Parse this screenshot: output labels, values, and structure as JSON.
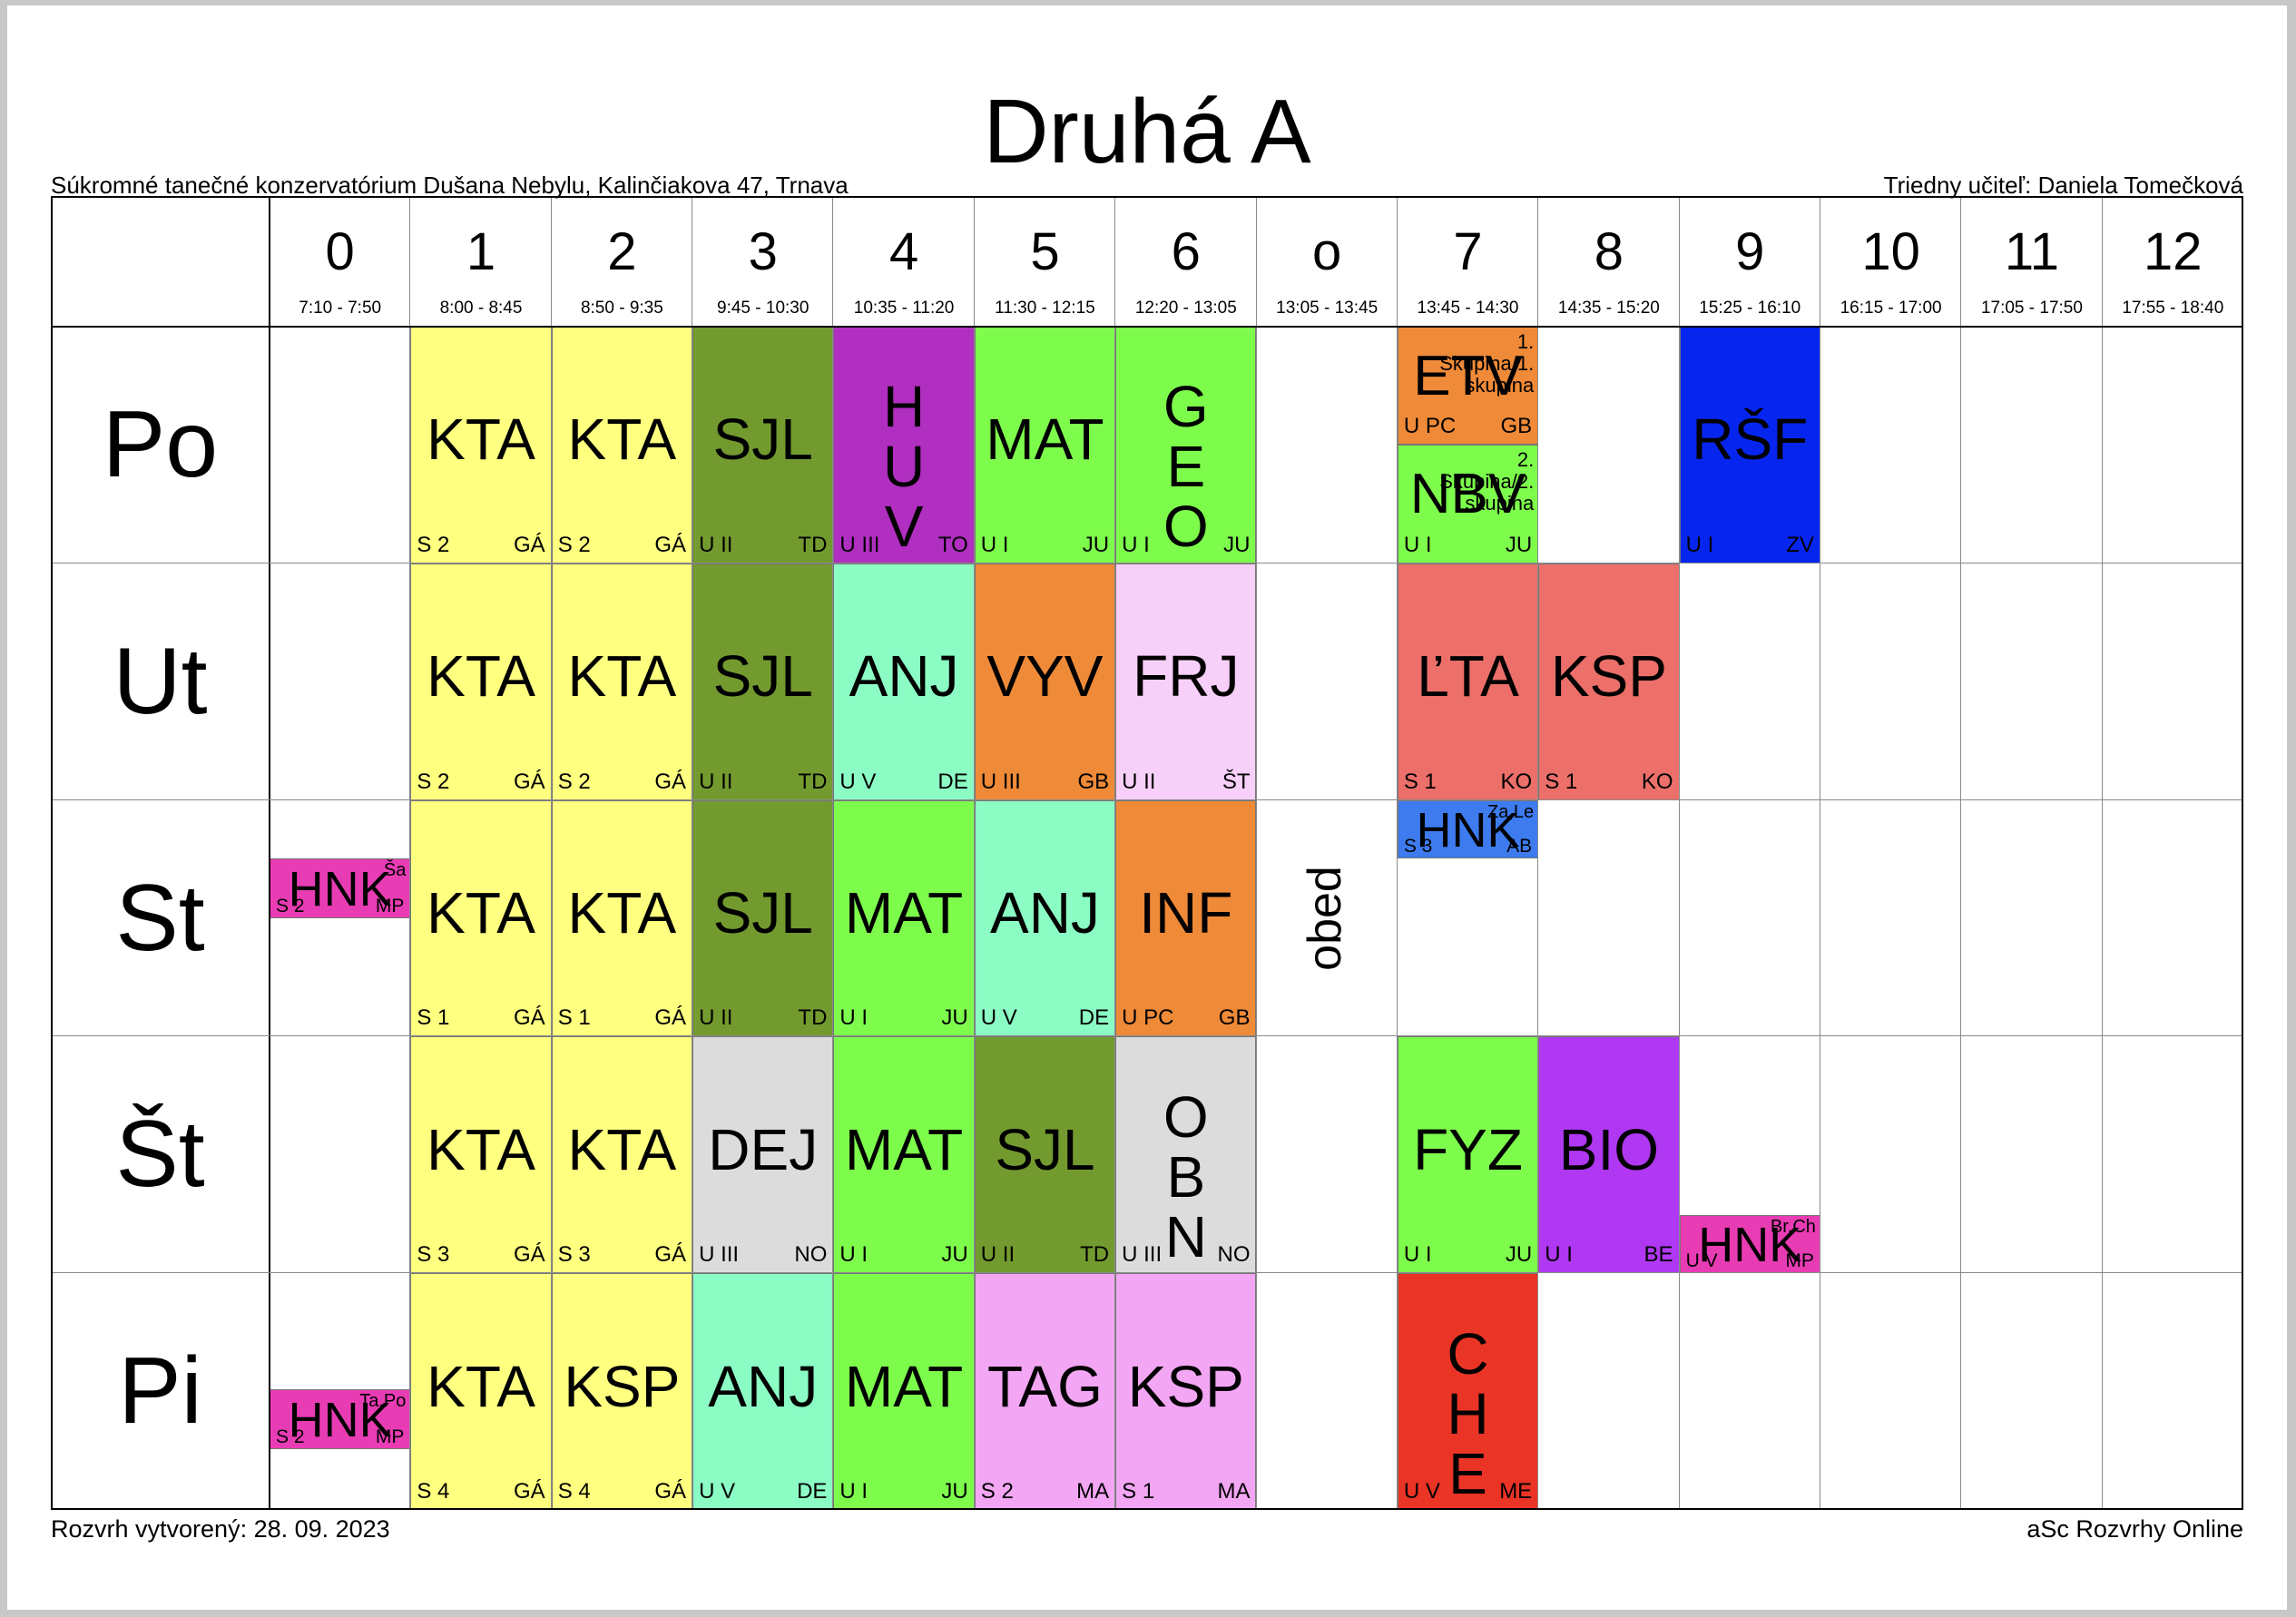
{
  "title": "Druhá A",
  "school": "Súkromné tanečné konzervatórium Dušana Nebylu, Kalinčiakova 47, Trnava",
  "class_teacher": "Triedny učiteľ: Daniela Tomečková",
  "created": "Rozvrh vytvorený: 28. 09. 2023",
  "brand": "aSc Rozvrhy Online",
  "break_label": "obed",
  "periods": [
    {
      "num": "0",
      "time": "7:10 - 7:50"
    },
    {
      "num": "1",
      "time": "8:00 - 8:45"
    },
    {
      "num": "2",
      "time": "8:50 - 9:35"
    },
    {
      "num": "3",
      "time": "9:45 - 10:30"
    },
    {
      "num": "4",
      "time": "10:35 - 11:20"
    },
    {
      "num": "5",
      "time": "11:30 - 12:15"
    },
    {
      "num": "6",
      "time": "12:20 - 13:05"
    },
    {
      "num": "o",
      "time": "13:05 - 13:45"
    },
    {
      "num": "7",
      "time": "13:45 - 14:30"
    },
    {
      "num": "8",
      "time": "14:35 - 15:20"
    },
    {
      "num": "9",
      "time": "15:25 - 16:10"
    },
    {
      "num": "10",
      "time": "16:15 - 17:00"
    },
    {
      "num": "11",
      "time": "17:05 - 17:50"
    },
    {
      "num": "12",
      "time": "17:55 - 18:40"
    }
  ],
  "days": [
    "Po",
    "Ut",
    "St",
    "Št",
    "Pi"
  ],
  "lessons": [
    {
      "day": 0,
      "col": 1,
      "subject": "KTA",
      "room": "S 2",
      "teacher": "GÁ",
      "color": "#ffff80"
    },
    {
      "day": 0,
      "col": 2,
      "subject": "KTA",
      "room": "S 2",
      "teacher": "GÁ",
      "color": "#ffff80"
    },
    {
      "day": 0,
      "col": 3,
      "subject": "SJL",
      "room": "U II",
      "teacher": "TD",
      "color": "#739a2f"
    },
    {
      "day": 0,
      "col": 4,
      "subject": "HUV",
      "room": "U III",
      "teacher": "TO",
      "color": "#b02ec0"
    },
    {
      "day": 0,
      "col": 5,
      "subject": "MAT",
      "room": "U I",
      "teacher": "JU",
      "color": "#7dfc4c"
    },
    {
      "day": 0,
      "col": 6,
      "subject": "GEO",
      "room": "U I",
      "teacher": "JU",
      "color": "#7dfc4c"
    },
    {
      "day": 0,
      "col": 8,
      "subject": "ETV",
      "room": "U PC",
      "teacher": "GB",
      "group": "Skupina/1. skupina",
      "group_num": "1.",
      "color": "#ef8a38",
      "part": "top"
    },
    {
      "day": 0,
      "col": 8,
      "subject": "NBV",
      "room": "U I",
      "teacher": "JU",
      "group": "Skupina/2. skupina",
      "group_num": "2.",
      "color": "#7dfc4c",
      "part": "bottom"
    },
    {
      "day": 0,
      "col": 10,
      "subject": "RŠF",
      "room": "U I",
      "teacher": "ZV",
      "color": "#0626f0"
    },
    {
      "day": 1,
      "col": 1,
      "subject": "KTA",
      "room": "S 2",
      "teacher": "GÁ",
      "color": "#ffff80"
    },
    {
      "day": 1,
      "col": 2,
      "subject": "KTA",
      "room": "S 2",
      "teacher": "GÁ",
      "color": "#ffff80"
    },
    {
      "day": 1,
      "col": 3,
      "subject": "SJL",
      "room": "U II",
      "teacher": "TD",
      "color": "#739a2f"
    },
    {
      "day": 1,
      "col": 4,
      "subject": "ANJ",
      "room": "U V",
      "teacher": "DE",
      "color": "#8cfcc5"
    },
    {
      "day": 1,
      "col": 5,
      "subject": "VYV",
      "room": "U III",
      "teacher": "GB",
      "color": "#ef8a38"
    },
    {
      "day": 1,
      "col": 6,
      "subject": "FRJ",
      "room": "U II",
      "teacher": "ŠT",
      "color": "#f7d0f9"
    },
    {
      "day": 1,
      "col": 8,
      "subject": "ĽTA",
      "room": "S 1",
      "teacher": "KO",
      "color": "#ec6f6a"
    },
    {
      "day": 1,
      "col": 9,
      "subject": "KSP",
      "room": "S 1",
      "teacher": "KO",
      "color": "#ec6f6a"
    },
    {
      "day": 2,
      "col": 0,
      "subject": "HNK",
      "room": "S 2",
      "teacher": "MP",
      "group": "Ša",
      "color": "#e83cb4",
      "part": "mini-mid"
    },
    {
      "day": 2,
      "col": 1,
      "subject": "KTA",
      "room": "S 1",
      "teacher": "GÁ",
      "color": "#ffff80"
    },
    {
      "day": 2,
      "col": 2,
      "subject": "KTA",
      "room": "S 1",
      "teacher": "GÁ",
      "color": "#ffff80"
    },
    {
      "day": 2,
      "col": 3,
      "subject": "SJL",
      "room": "U II",
      "teacher": "TD",
      "color": "#739a2f"
    },
    {
      "day": 2,
      "col": 4,
      "subject": "MAT",
      "room": "U I",
      "teacher": "JU",
      "color": "#7dfc4c"
    },
    {
      "day": 2,
      "col": 5,
      "subject": "ANJ",
      "room": "U V",
      "teacher": "DE",
      "color": "#8cfcc5"
    },
    {
      "day": 2,
      "col": 6,
      "subject": "INF",
      "room": "U PC",
      "teacher": "GB",
      "color": "#ef8a38"
    },
    {
      "day": 2,
      "col": 8,
      "subject": "HNK",
      "room": "S 3",
      "teacher": "AB",
      "group": "Za,Le",
      "color": "#3d7bef",
      "part": "mini-top"
    },
    {
      "day": 3,
      "col": 1,
      "subject": "KTA",
      "room": "S 3",
      "teacher": "GÁ",
      "color": "#ffff80"
    },
    {
      "day": 3,
      "col": 2,
      "subject": "KTA",
      "room": "S 3",
      "teacher": "GÁ",
      "color": "#ffff80"
    },
    {
      "day": 3,
      "col": 3,
      "subject": "DEJ",
      "room": "U III",
      "teacher": "NO",
      "color": "#dcdcdc"
    },
    {
      "day": 3,
      "col": 4,
      "subject": "MAT",
      "room": "U I",
      "teacher": "JU",
      "color": "#7dfc4c"
    },
    {
      "day": 3,
      "col": 5,
      "subject": "SJL",
      "room": "U II",
      "teacher": "TD",
      "color": "#739a2f"
    },
    {
      "day": 3,
      "col": 6,
      "subject": "OBN",
      "room": "U III",
      "teacher": "NO",
      "color": "#dcdcdc"
    },
    {
      "day": 3,
      "col": 8,
      "subject": "FYZ",
      "room": "U I",
      "teacher": "JU",
      "color": "#7dfc4c"
    },
    {
      "day": 3,
      "col": 9,
      "subject": "BIO",
      "room": "U I",
      "teacher": "BE",
      "color": "#b038f2"
    },
    {
      "day": 3,
      "col": 10,
      "subject": "HNK",
      "room": "U V",
      "teacher": "MP",
      "group": "Br,Ch",
      "color": "#e83cb4",
      "part": "mini-bottom"
    },
    {
      "day": 4,
      "col": 0,
      "subject": "HNK",
      "room": "S 2",
      "teacher": "MP",
      "group": "Ta,Po",
      "color": "#e83cb4",
      "part": "mini-low"
    },
    {
      "day": 4,
      "col": 1,
      "subject": "KTA",
      "room": "S 4",
      "teacher": "GÁ",
      "color": "#ffff80"
    },
    {
      "day": 4,
      "col": 2,
      "subject": "KSP",
      "room": "S 4",
      "teacher": "GÁ",
      "color": "#ffff80"
    },
    {
      "day": 4,
      "col": 3,
      "subject": "ANJ",
      "room": "U V",
      "teacher": "DE",
      "color": "#8cfcc5"
    },
    {
      "day": 4,
      "col": 4,
      "subject": "MAT",
      "room": "U I",
      "teacher": "JU",
      "color": "#7dfc4c"
    },
    {
      "day": 4,
      "col": 5,
      "subject": "TAG",
      "room": "S 2",
      "teacher": "MA",
      "color": "#f2a6f3"
    },
    {
      "day": 4,
      "col": 6,
      "subject": "KSP",
      "room": "S 1",
      "teacher": "MA",
      "color": "#f2a6f3"
    },
    {
      "day": 4,
      "col": 8,
      "subject": "CHE",
      "room": "U V",
      "teacher": "ME",
      "color": "#ea3426"
    }
  ]
}
